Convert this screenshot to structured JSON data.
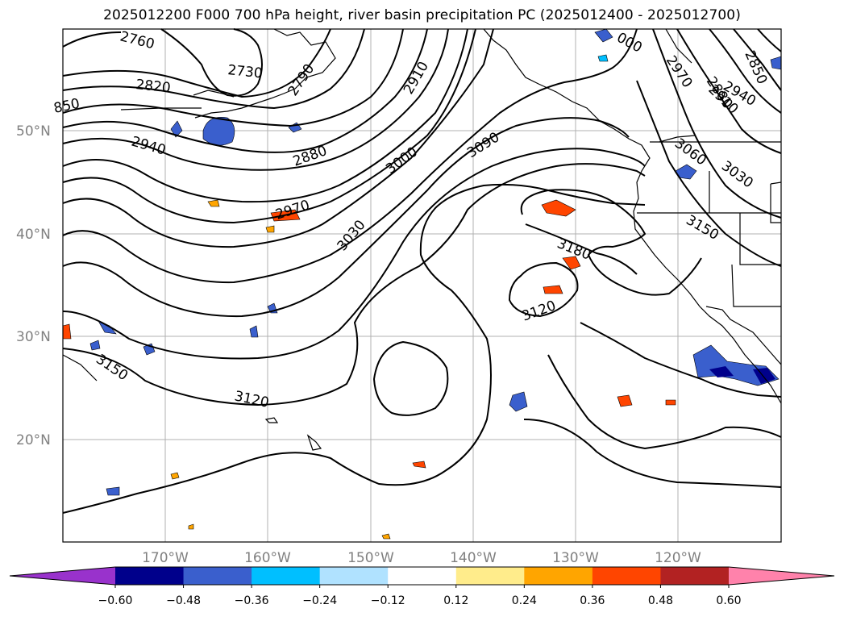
{
  "title": "2025012200 F000 700 hPa height, river basin precipitation PC (2025012400 - 2025012700)",
  "lat_labels": [
    "50°N",
    "40°N",
    "30°N",
    "20°N"
  ],
  "lon_labels": [
    "170°W",
    "160°W",
    "150°W",
    "140°W",
    "130°W",
    "120°W"
  ],
  "contour_labels": [
    "2760",
    "2730",
    "2820",
    "2790",
    "2910",
    "850",
    "2880",
    "2940",
    "3000",
    "3090",
    "2970",
    "3030",
    "3060",
    "3030",
    "3150",
    "3180",
    "3120",
    "3150",
    "3120",
    "2970",
    "2880",
    "2910",
    "2940",
    "2850",
    "000"
  ],
  "colorbar": {
    "ticks": [
      "−0.60",
      "−0.48",
      "−0.36",
      "−0.24",
      "−0.12",
      "0.12",
      "0.24",
      "0.36",
      "0.48",
      "0.60"
    ],
    "colors": [
      "#9932CC",
      "#00008B",
      "#3A5FCD",
      "#00BFFF",
      "#B0E2FF",
      "#FFFFFF",
      "#FFEC8B",
      "#FFA500",
      "#FF4500",
      "#B22222",
      "#FF82AB"
    ],
    "extend": "both"
  }
}
